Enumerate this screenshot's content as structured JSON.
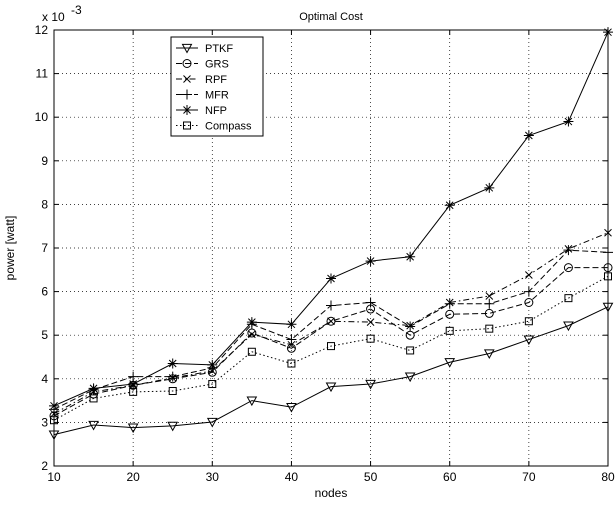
{
  "chart_data": {
    "type": "line",
    "title": "Optimal Cost",
    "xlabel": "nodes",
    "ylabel": "power [watt]",
    "y_multiplier_label": "x 10",
    "y_multiplier_exponent": "-3",
    "xlim": [
      10,
      80
    ],
    "ylim": [
      2,
      12
    ],
    "xticks": [
      10,
      20,
      30,
      40,
      50,
      60,
      70,
      80
    ],
    "yticks": [
      2,
      3,
      4,
      5,
      6,
      7,
      8,
      9,
      10,
      11,
      12
    ],
    "grid": true,
    "legend_position": "top-left",
    "x": [
      10,
      15,
      20,
      25,
      30,
      35,
      40,
      45,
      50,
      55,
      60,
      65,
      70,
      75,
      80
    ],
    "series": [
      {
        "name": "PTKF",
        "marker": "triangle-down",
        "linestyle": "solid",
        "color": "#000000",
        "values": [
          2.72,
          2.94,
          2.88,
          2.92,
          3.01,
          3.5,
          3.35,
          3.82,
          3.88,
          4.05,
          4.38,
          4.58,
          4.9,
          5.22,
          5.65
        ]
      },
      {
        "name": "GRS",
        "marker": "circle",
        "linestyle": "dashed",
        "color": "#000000",
        "values": [
          3.15,
          3.65,
          3.85,
          4.0,
          4.15,
          5.05,
          4.7,
          5.32,
          5.6,
          5.0,
          5.48,
          5.5,
          5.75,
          6.55,
          6.55
        ]
      },
      {
        "name": "RPF",
        "marker": "x",
        "linestyle": "dashdot",
        "color": "#000000",
        "values": [
          3.2,
          3.7,
          3.85,
          4.02,
          4.18,
          5.02,
          4.78,
          5.32,
          5.3,
          5.22,
          5.75,
          5.9,
          6.38,
          6.98,
          7.35
        ]
      },
      {
        "name": "MFR",
        "marker": "plus",
        "linestyle": "dashed",
        "color": "#000000",
        "values": [
          3.3,
          3.75,
          4.05,
          4.05,
          4.25,
          5.25,
          4.9,
          5.68,
          5.75,
          5.2,
          5.72,
          5.72,
          6.0,
          6.95,
          6.9
        ]
      },
      {
        "name": "NFP",
        "marker": "star",
        "linestyle": "solid",
        "color": "#000000",
        "values": [
          3.38,
          3.78,
          3.88,
          4.35,
          4.32,
          5.3,
          5.25,
          6.3,
          6.7,
          6.8,
          7.98,
          8.38,
          9.58,
          9.9,
          11.95
        ]
      },
      {
        "name": "Compass",
        "marker": "square",
        "linestyle": "dotted",
        "color": "#000000",
        "values": [
          3.05,
          3.55,
          3.7,
          3.72,
          3.88,
          4.62,
          4.35,
          4.75,
          4.92,
          4.65,
          5.1,
          5.15,
          5.32,
          5.85,
          6.35
        ]
      }
    ]
  }
}
